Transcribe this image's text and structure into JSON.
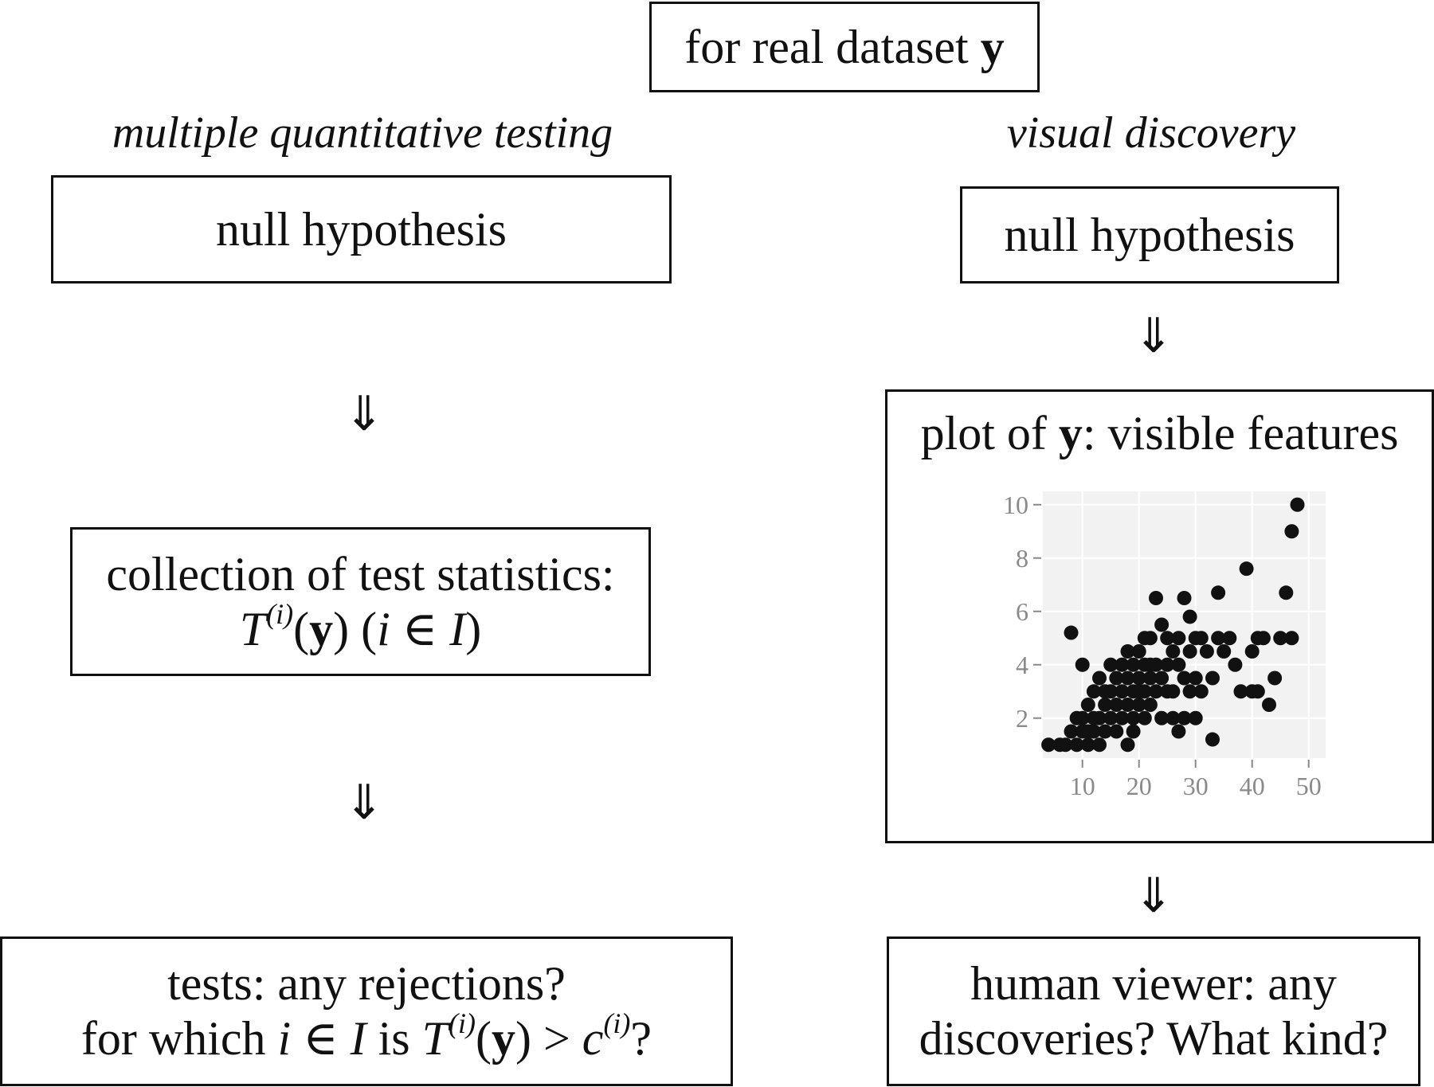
{
  "top": {
    "prefix": "for real dataset ",
    "var": "y"
  },
  "left": {
    "heading": "multiple quantitative testing",
    "box1": "null hypothesis",
    "arrow": "⇓",
    "box2": {
      "line1": "collection of test statistics:",
      "T": "T",
      "sup": "(i)",
      "lp": "(",
      "y": "y",
      "rp": ")",
      "open": " (",
      "i": "i",
      "in": " ∈ ",
      "I": "I",
      "close": ")"
    },
    "box3": {
      "line1": "tests: any rejections?",
      "pre": "for which ",
      "i": "i",
      "in": " ∈ ",
      "I": "I",
      "is": " is ",
      "T": "T",
      "sup": "(i)",
      "lp": "(",
      "y": "y",
      "rp": ")",
      "gt": " > ",
      "c": "c",
      "csup": "(i)",
      "q": "?"
    }
  },
  "right": {
    "heading": "visual discovery",
    "box1": "null hypothesis",
    "arrow": "⇓",
    "plot_title": {
      "prefix": "plot of ",
      "var": "y",
      "suffix": ": visible features"
    },
    "box3": {
      "line1": "human viewer: any",
      "line2": "discoveries? What kind?"
    }
  },
  "chart_data": {
    "type": "scatter",
    "xlim": [
      3,
      53
    ],
    "ylim": [
      0.5,
      10.5
    ],
    "xticks": [
      10,
      20,
      30,
      40,
      50
    ],
    "yticks": [
      2,
      4,
      6,
      8,
      10
    ],
    "grid": true,
    "points": [
      [
        4,
        1
      ],
      [
        6,
        1
      ],
      [
        7,
        1
      ],
      [
        8,
        5.2
      ],
      [
        8,
        1.5
      ],
      [
        9,
        2
      ],
      [
        9,
        1
      ],
      [
        10,
        1.5
      ],
      [
        10,
        2
      ],
      [
        10,
        4
      ],
      [
        11,
        1
      ],
      [
        11,
        2.5
      ],
      [
        11,
        1.5
      ],
      [
        12,
        2
      ],
      [
        12,
        3
      ],
      [
        12,
        1.5
      ],
      [
        13,
        3.5
      ],
      [
        13,
        2
      ],
      [
        13,
        1
      ],
      [
        14,
        2.5
      ],
      [
        14,
        1.5
      ],
      [
        14,
        3
      ],
      [
        15,
        4
      ],
      [
        15,
        2
      ],
      [
        15,
        3
      ],
      [
        16,
        3.5
      ],
      [
        16,
        2.5
      ],
      [
        16,
        1.5
      ],
      [
        17,
        4
      ],
      [
        17,
        3
      ],
      [
        17,
        2
      ],
      [
        18,
        4.5
      ],
      [
        18,
        3.5
      ],
      [
        18,
        2.5
      ],
      [
        18,
        1
      ],
      [
        19,
        4
      ],
      [
        19,
        3
      ],
      [
        19,
        2
      ],
      [
        19,
        1.5
      ],
      [
        20,
        4.5
      ],
      [
        20,
        3.5
      ],
      [
        20,
        3
      ],
      [
        20,
        2.5
      ],
      [
        21,
        4
      ],
      [
        21,
        3
      ],
      [
        21,
        2
      ],
      [
        21,
        5
      ],
      [
        22,
        5
      ],
      [
        22,
        3.5
      ],
      [
        22,
        2.5
      ],
      [
        22,
        4
      ],
      [
        23,
        6.5
      ],
      [
        23,
        3
      ],
      [
        23,
        4
      ],
      [
        24,
        5.5
      ],
      [
        24,
        3.5
      ],
      [
        24,
        2
      ],
      [
        25,
        5
      ],
      [
        25,
        4
      ],
      [
        25,
        3
      ],
      [
        26,
        4.5
      ],
      [
        26,
        3
      ],
      [
        26,
        2
      ],
      [
        27,
        5
      ],
      [
        27,
        4
      ],
      [
        27,
        1.5
      ],
      [
        28,
        6.5
      ],
      [
        28,
        3.5
      ],
      [
        28,
        2
      ],
      [
        29,
        5.8
      ],
      [
        29,
        4.5
      ],
      [
        29,
        3
      ],
      [
        30,
        5
      ],
      [
        30,
        3.5
      ],
      [
        30,
        2
      ],
      [
        31,
        5
      ],
      [
        31,
        3
      ],
      [
        32,
        4.5
      ],
      [
        33,
        1.2
      ],
      [
        33,
        3.5
      ],
      [
        34,
        6.7
      ],
      [
        34,
        5
      ],
      [
        35,
        4.5
      ],
      [
        36,
        5
      ],
      [
        37,
        4
      ],
      [
        38,
        3
      ],
      [
        39,
        7.6
      ],
      [
        40,
        3
      ],
      [
        40,
        4.5
      ],
      [
        41,
        5
      ],
      [
        41,
        3
      ],
      [
        42,
        5
      ],
      [
        43,
        2.5
      ],
      [
        44,
        3.5
      ],
      [
        45,
        5
      ],
      [
        46,
        6.7
      ],
      [
        47,
        9
      ],
      [
        48,
        10
      ],
      [
        47,
        5
      ]
    ]
  }
}
